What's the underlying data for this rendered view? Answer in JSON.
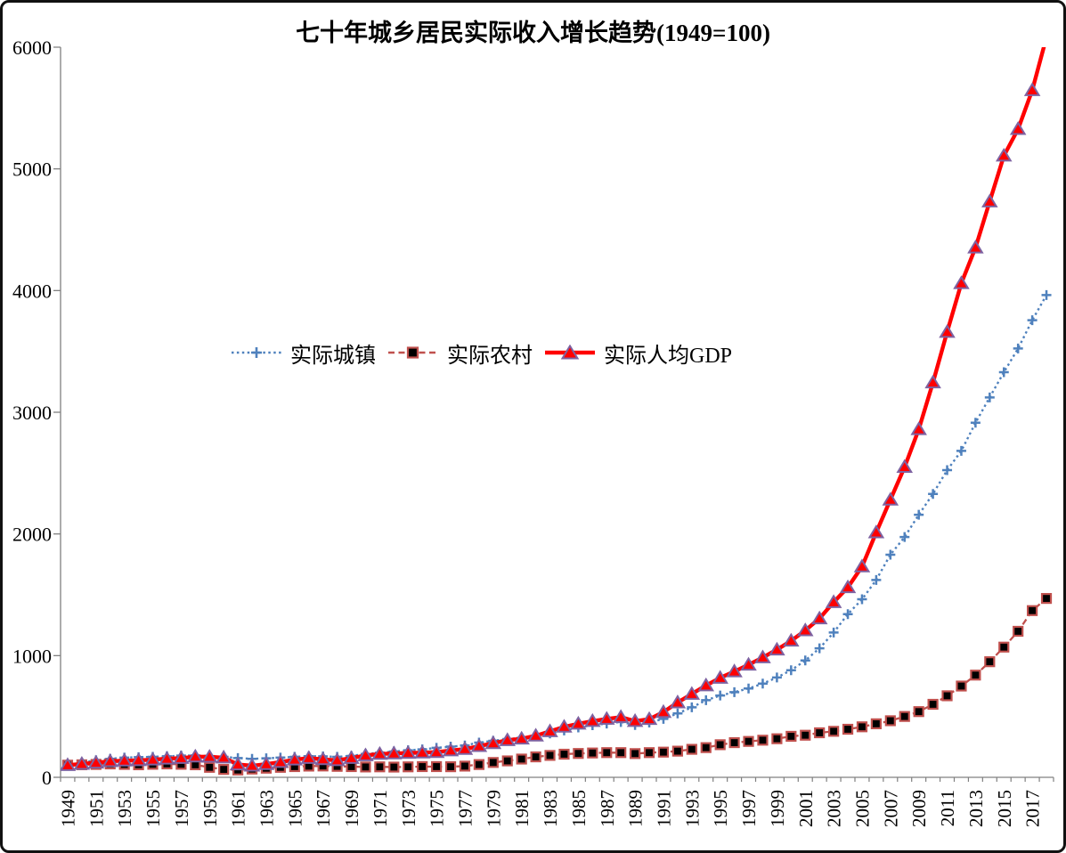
{
  "title": "七十年城乡居民实际收入增长趋势(1949=100)",
  "chart_data": {
    "type": "line",
    "title": "七十年城乡居民实际收入增长趋势(1949=100)",
    "xlabel": "",
    "ylabel": "",
    "x_years": {
      "start": 1949,
      "end": 2018,
      "step": 1
    },
    "x_tick_labels": [
      "1949",
      "1951",
      "1953",
      "1955",
      "1957",
      "1959",
      "1961",
      "1963",
      "1965",
      "1967",
      "1969",
      "1971",
      "1973",
      "1975",
      "1977",
      "1979",
      "1981",
      "1983",
      "1985",
      "1987",
      "1989",
      "1991",
      "1993",
      "1995",
      "1997",
      "1999",
      "2001",
      "2003",
      "2005",
      "2007",
      "2009",
      "2011",
      "2013",
      "2015",
      "2017"
    ],
    "y_ticks": [
      0,
      1000,
      2000,
      3000,
      4000,
      5000,
      6000
    ],
    "ylim": [
      0,
      6000
    ],
    "grid": false,
    "legend_position": "inside-left-middle",
    "axis_color": "#808080",
    "series": [
      {
        "name": "实际城镇",
        "color": "#4F81BD",
        "line": "dotted",
        "marker": "plus",
        "marker_fill": "#4F81BD",
        "marker_stroke": "#4F81BD",
        "values": [
          100,
          122,
          140,
          152,
          162,
          166,
          168,
          173,
          178,
          180,
          175,
          168,
          158,
          152,
          156,
          162,
          168,
          174,
          172,
          168,
          176,
          192,
          202,
          212,
          222,
          230,
          242,
          252,
          262,
          285,
          300,
          315,
          325,
          340,
          360,
          385,
          410,
          428,
          442,
          455,
          430,
          450,
          480,
          525,
          575,
          634,
          672,
          700,
          730,
          770,
          820,
          880,
          960,
          1060,
          1190,
          1341,
          1463,
          1622,
          1829,
          1975,
          2158,
          2329,
          2524,
          2683,
          2914,
          3122,
          3329,
          3524,
          3756,
          3963
        ]
      },
      {
        "name": "实际农村",
        "color": "#C0504D",
        "line": "dashed",
        "marker": "square",
        "marker_fill": "#000000",
        "marker_stroke": "#C0504D",
        "values": [
          100,
          103,
          106,
          110,
          106,
          103,
          107,
          110,
          107,
          103,
          82,
          65,
          60,
          68,
          75,
          82,
          88,
          92,
          93,
          90,
          88,
          85,
          86,
          84,
          86,
          88,
          88,
          87,
          92,
          105,
          122,
          135,
          150,
          168,
          180,
          190,
          196,
          200,
          203,
          203,
          195,
          203,
          207,
          215,
          230,
          244,
          268,
          285,
          295,
          305,
          317,
          337,
          346,
          366,
          378,
          395,
          415,
          440,
          465,
          500,
          540,
          600,
          670,
          750,
          840,
          950,
          1070,
          1200,
          1370,
          1470
        ]
      },
      {
        "name": "实际人均GDP",
        "color": "#FF0000",
        "line": "solid",
        "marker": "triangle",
        "marker_fill": "#FF0000",
        "marker_stroke": "#7E62A1",
        "values": [
          100,
          110,
          120,
          132,
          137,
          140,
          145,
          153,
          158,
          170,
          168,
          162,
          105,
          95,
          108,
          125,
          145,
          158,
          148,
          140,
          158,
          180,
          192,
          196,
          200,
          203,
          207,
          220,
          232,
          256,
          280,
          305,
          317,
          342,
          378,
          415,
          440,
          462,
          480,
          495,
          462,
          478,
          536,
          615,
          685,
          755,
          817,
          870,
          925,
          985,
          1049,
          1122,
          1207,
          1305,
          1439,
          1561,
          1732,
          2012,
          2281,
          2550,
          2860,
          3244,
          3659,
          4060,
          4353,
          4731,
          5108,
          5327,
          5646,
          6080
        ]
      }
    ]
  }
}
